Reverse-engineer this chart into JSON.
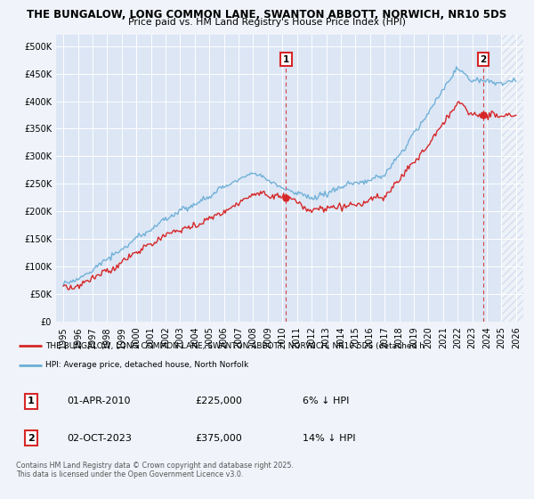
{
  "title1": "THE BUNGALOW, LONG COMMON LANE, SWANTON ABBOTT, NORWICH, NR10 5DS",
  "title2": "Price paid vs. HM Land Registry's House Price Index (HPI)",
  "legend_line1": "THE BUNGALOW, LONG COMMON LANE, SWANTON ABBOTT, NORWICH, NR10 5DS (detached h",
  "legend_line2": "HPI: Average price, detached house, North Norfolk",
  "annotation1_date": "01-APR-2010",
  "annotation1_price": "£225,000",
  "annotation1_pct": "6% ↓ HPI",
  "annotation2_date": "02-OCT-2023",
  "annotation2_price": "£375,000",
  "annotation2_pct": "14% ↓ HPI",
  "footer": "Contains HM Land Registry data © Crown copyright and database right 2025.\nThis data is licensed under the Open Government Licence v3.0.",
  "hpi_color": "#6baed6",
  "price_color": "#d62728",
  "annotation_color": "#d62728",
  "background_color": "#f0f4fa",
  "plot_bg_color": "#dce6f5",
  "grid_color": "#c8d4e8",
  "hatch_color": "#c8d4e8",
  "ylim": [
    0,
    520000
  ],
  "yticks": [
    0,
    50000,
    100000,
    150000,
    200000,
    250000,
    300000,
    350000,
    400000,
    450000,
    500000
  ],
  "sale1_year": 2010.25,
  "sale2_year": 2023.75,
  "xmin": 1995,
  "xmax": 2026,
  "hatch_start": 2025.0
}
